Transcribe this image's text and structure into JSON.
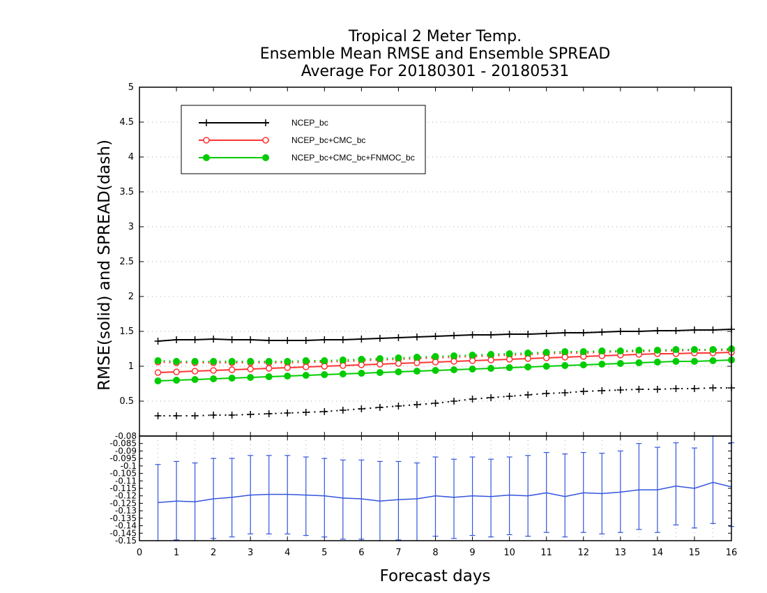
{
  "chart_data": {
    "type": "line",
    "title_lines": [
      "Tropical 2 Meter Temp.",
      "Ensemble Mean RMSE and Ensemble SPREAD",
      "Average For 20180301 - 20180531"
    ],
    "xlabel": "Forecast days",
    "ylabel": "RMSE(solid) and SPREAD(dash)",
    "x": [
      0.5,
      1,
      1.5,
      2,
      2.5,
      3,
      3.5,
      4,
      4.5,
      5,
      5.5,
      6,
      6.5,
      7,
      7.5,
      8,
      8.5,
      9,
      9.5,
      10,
      10.5,
      11,
      11.5,
      12,
      12.5,
      13,
      13.5,
      14,
      14.5,
      15,
      15.5,
      16
    ],
    "xlim": [
      0,
      16
    ],
    "x_ticks": [
      "0",
      "1",
      "2",
      "3",
      "4",
      "5",
      "6",
      "7",
      "8",
      "9",
      "10",
      "11",
      "12",
      "13",
      "14",
      "15",
      "16"
    ],
    "top_panel": {
      "ylim": [
        0,
        5
      ],
      "y_ticks": [
        "0.5",
        "1",
        "1.5",
        "2",
        "2.5",
        "3",
        "3.5",
        "4",
        "4.5",
        "5"
      ],
      "grid": "dotted horizontal",
      "legend_position": "top-left",
      "series": [
        {
          "name": "NCEP_bc",
          "color": "#000000",
          "marker": "plus",
          "rmse": [
            1.36,
            1.38,
            1.38,
            1.39,
            1.38,
            1.38,
            1.37,
            1.37,
            1.37,
            1.38,
            1.38,
            1.39,
            1.4,
            1.41,
            1.42,
            1.43,
            1.44,
            1.45,
            1.45,
            1.46,
            1.46,
            1.47,
            1.48,
            1.48,
            1.49,
            1.5,
            1.5,
            1.51,
            1.51,
            1.52,
            1.52,
            1.53
          ],
          "spread": [
            0.29,
            0.29,
            0.29,
            0.3,
            0.3,
            0.31,
            0.32,
            0.33,
            0.34,
            0.35,
            0.37,
            0.39,
            0.41,
            0.43,
            0.45,
            0.47,
            0.5,
            0.53,
            0.55,
            0.57,
            0.59,
            0.61,
            0.62,
            0.64,
            0.65,
            0.66,
            0.67,
            0.67,
            0.68,
            0.68,
            0.69,
            0.69
          ]
        },
        {
          "name": "NCEP_bc+CMC_bc",
          "color": "#ff3333",
          "marker": "open-circle",
          "rmse": [
            0.91,
            0.92,
            0.93,
            0.94,
            0.95,
            0.96,
            0.97,
            0.98,
            0.99,
            1.0,
            1.01,
            1.02,
            1.03,
            1.04,
            1.05,
            1.06,
            1.07,
            1.08,
            1.09,
            1.1,
            1.11,
            1.12,
            1.13,
            1.14,
            1.15,
            1.16,
            1.17,
            1.18,
            1.18,
            1.19,
            1.19,
            1.2
          ],
          "spread": [
            1.06,
            1.05,
            1.05,
            1.05,
            1.05,
            1.05,
            1.05,
            1.05,
            1.06,
            1.06,
            1.07,
            1.08,
            1.09,
            1.1,
            1.11,
            1.12,
            1.13,
            1.14,
            1.15,
            1.16,
            1.17,
            1.18,
            1.19,
            1.19,
            1.2,
            1.21,
            1.21,
            1.22,
            1.22,
            1.23,
            1.23,
            1.23
          ]
        },
        {
          "name": "NCEP_bc+CMC_bc+FNMOC_bc",
          "color": "#00cc00",
          "marker": "filled-circle",
          "rmse": [
            0.79,
            0.8,
            0.81,
            0.82,
            0.83,
            0.84,
            0.85,
            0.86,
            0.87,
            0.88,
            0.89,
            0.9,
            0.91,
            0.92,
            0.93,
            0.94,
            0.95,
            0.96,
            0.97,
            0.98,
            0.99,
            1.0,
            1.01,
            1.02,
            1.03,
            1.04,
            1.05,
            1.06,
            1.07,
            1.07,
            1.08,
            1.09
          ],
          "spread": [
            1.08,
            1.07,
            1.07,
            1.07,
            1.07,
            1.07,
            1.07,
            1.07,
            1.08,
            1.08,
            1.09,
            1.1,
            1.11,
            1.12,
            1.13,
            1.14,
            1.15,
            1.16,
            1.17,
            1.18,
            1.19,
            1.2,
            1.21,
            1.21,
            1.22,
            1.22,
            1.23,
            1.23,
            1.24,
            1.24,
            1.24,
            1.25
          ]
        }
      ]
    },
    "bottom_panel": {
      "ylim": [
        -0.15,
        -0.08
      ],
      "y_ticks": [
        "-0.15",
        "-0.145",
        "-0.14",
        "-0.135",
        "-0.13",
        "-0.125",
        "-0.12",
        "-0.115",
        "-0.11",
        "-0.105",
        "-0.1",
        "-0.095",
        "-0.09",
        "-0.085",
        "-0.08"
      ],
      "color": "#3355dd",
      "series": {
        "mean": [
          -0.1245,
          -0.1235,
          -0.124,
          -0.122,
          -0.121,
          -0.1195,
          -0.119,
          -0.119,
          -0.1195,
          -0.12,
          -0.1215,
          -0.122,
          -0.1235,
          -0.1225,
          -0.122,
          -0.12,
          -0.121,
          -0.12,
          -0.1205,
          -0.1195,
          -0.12,
          -0.118,
          -0.1205,
          -0.118,
          -0.1185,
          -0.1175,
          -0.116,
          -0.116,
          -0.1135,
          -0.115,
          -0.111,
          -0.114
        ],
        "upper": [
          -0.099,
          -0.097,
          -0.098,
          -0.095,
          -0.095,
          -0.093,
          -0.093,
          -0.093,
          -0.094,
          -0.095,
          -0.096,
          -0.096,
          -0.097,
          -0.097,
          -0.098,
          -0.094,
          -0.0955,
          -0.094,
          -0.0955,
          -0.094,
          -0.093,
          -0.091,
          -0.092,
          -0.091,
          -0.0915,
          -0.09,
          -0.085,
          -0.0875,
          -0.0845,
          -0.088,
          -0.08,
          -0.0845
        ],
        "lower": [
          -0.15,
          -0.1495,
          -0.15,
          -0.1485,
          -0.1475,
          -0.1455,
          -0.1455,
          -0.1455,
          -0.1465,
          -0.1475,
          -0.149,
          -0.149,
          -0.15,
          -0.1495,
          -0.15,
          -0.147,
          -0.1485,
          -0.1465,
          -0.1475,
          -0.146,
          -0.147,
          -0.1445,
          -0.1475,
          -0.1445,
          -0.1455,
          -0.1445,
          -0.1425,
          -0.1445,
          -0.1395,
          -0.1415,
          -0.1385,
          -0.1405
        ]
      }
    }
  }
}
